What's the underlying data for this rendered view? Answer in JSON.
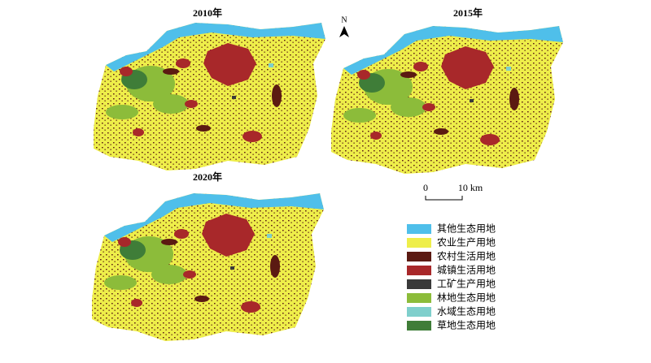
{
  "maps": [
    {
      "title": "2010年"
    },
    {
      "title": "2015年"
    },
    {
      "title": "2020年"
    }
  ],
  "north_arrow": {
    "label": "N"
  },
  "scale_bar": {
    "start_label": "0",
    "end_label": "10 km"
  },
  "legend": {
    "items": [
      {
        "label": "其他生态用地",
        "color": "#4fbfea"
      },
      {
        "label": "农业生产用地",
        "color": "#eeee4a"
      },
      {
        "label": "农村生活用地",
        "color": "#5b1a12"
      },
      {
        "label": "城镇生活用地",
        "color": "#a8282a"
      },
      {
        "label": "工矿生产用地",
        "color": "#3a3a3a"
      },
      {
        "label": "林地生态用地",
        "color": "#8cbc3a"
      },
      {
        "label": "水域生态用地",
        "color": "#7fcfcc"
      },
      {
        "label": "草地生态用地",
        "color": "#3f7d38"
      }
    ]
  }
}
